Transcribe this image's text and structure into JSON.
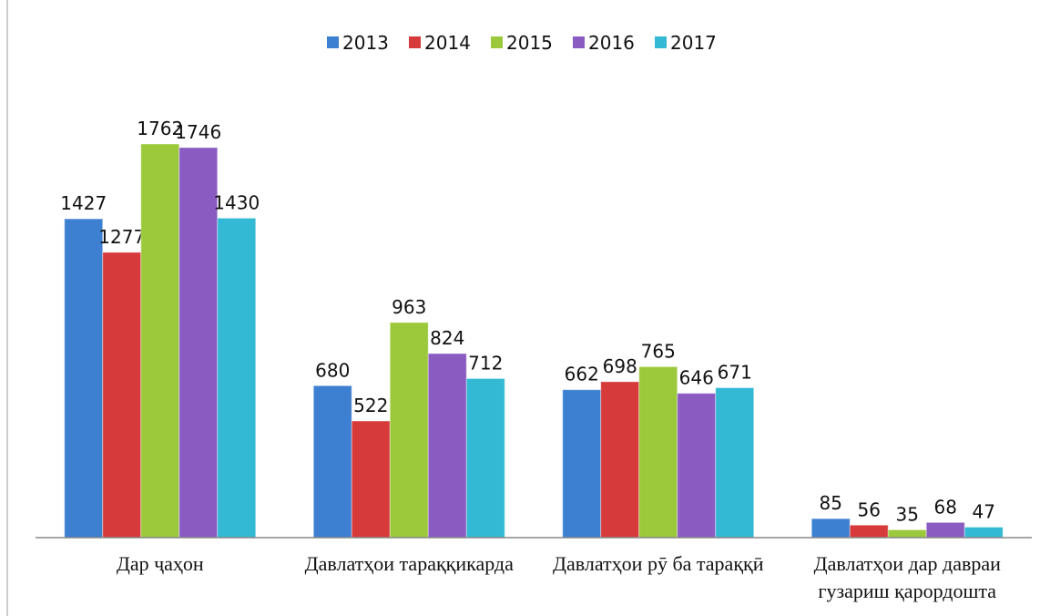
{
  "chart_data": {
    "type": "bar",
    "categories": [
      "Дар ҷаҳон",
      "Давлатҳои тараққикарда",
      "Давлатҳои рӯ ба тараққӣ",
      "Давлатҳои дар давраи гузариш қарордошта"
    ],
    "series": [
      {
        "name": "2013",
        "color": "#3d7fd1",
        "values": [
          1427,
          680,
          662,
          85
        ]
      },
      {
        "name": "2014",
        "color": "#d63a3a",
        "values": [
          1277,
          522,
          698,
          56
        ]
      },
      {
        "name": "2015",
        "color": "#9cc93b",
        "values": [
          1762,
          963,
          765,
          35
        ]
      },
      {
        "name": "2016",
        "color": "#8a5cc2",
        "values": [
          1746,
          824,
          646,
          68
        ]
      },
      {
        "name": "2017",
        "color": "#34b9d5",
        "values": [
          1430,
          712,
          671,
          47
        ]
      }
    ],
    "legend": "top"
  }
}
